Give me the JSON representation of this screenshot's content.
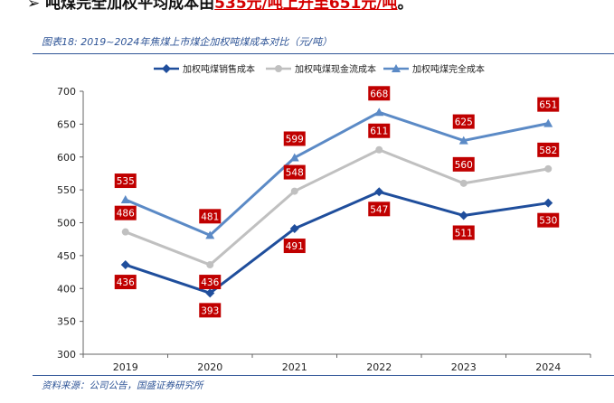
{
  "header": {
    "line_prefix": "吨煤完全加权平均成本由",
    "line_highlight": "535元/吨上升至651元/吨",
    "line_suffix": "。"
  },
  "figure": {
    "caption": "图表18: 2019~2024年焦煤上市煤企加权吨煤成本对比（元/吨）",
    "source": "资料来源：公司公告，国盛证券研究所"
  },
  "colors": {
    "sales": "#1f4e9c",
    "cash": "#c0c0c0",
    "full": "#5b8ac6",
    "label_bg": "#c00000",
    "rule": "#2f5597"
  },
  "chart_data": {
    "type": "line",
    "title": "2019~2024年焦煤上市煤企加权吨煤成本对比（元/吨）",
    "xlabel": "",
    "ylabel": "元/吨",
    "categories": [
      "2019",
      "2020",
      "2021",
      "2022",
      "2023",
      "2024"
    ],
    "ylim": [
      300,
      700
    ],
    "yticks": [
      300,
      350,
      400,
      450,
      500,
      550,
      600,
      650,
      700
    ],
    "legend_position": "top",
    "grid": false,
    "series": [
      {
        "name": "加权吨煤销售成本",
        "marker": "diamond",
        "values": [
          436,
          393,
          491,
          547,
          511,
          530
        ],
        "label_pos": [
          "below",
          "below",
          "below",
          "below",
          "below",
          "below"
        ]
      },
      {
        "name": "加权吨煤现金流成本",
        "marker": "circle",
        "values": [
          486,
          436,
          548,
          611,
          560,
          582
        ],
        "label_pos": [
          "above",
          "below",
          "above",
          "above",
          "above",
          "above"
        ]
      },
      {
        "name": "加权吨煤完全成本",
        "marker": "triangle",
        "values": [
          535,
          481,
          599,
          668,
          625,
          651
        ],
        "label_pos": [
          "above",
          "above",
          "above",
          "above",
          "above",
          "above"
        ]
      }
    ]
  }
}
